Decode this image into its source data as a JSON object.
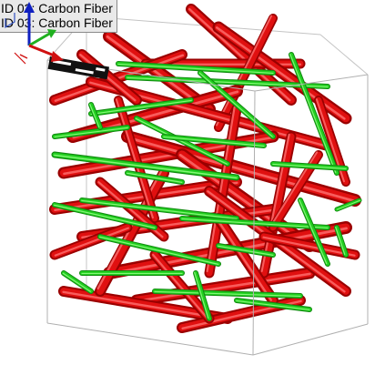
{
  "legend": {
    "items": [
      {
        "label": "ID 02: Carbon Fiber",
        "color": "#e01010"
      },
      {
        "label": "ID 03: Carbon Fiber",
        "color": "#22d020"
      }
    ]
  },
  "colors": {
    "fiber_red": "#e01010",
    "fiber_red_dark": "#a00000",
    "fiber_green": "#22d020",
    "fiber_green_dark": "#119010",
    "box_edge": "#b0b0b0",
    "background": "#ffffff"
  },
  "axis_triad": {
    "axes": [
      {
        "name": "x-axis",
        "color": "#d01010"
      },
      {
        "name": "y-axis",
        "color": "#20b020"
      },
      {
        "name": "z-axis",
        "color": "#1020c0"
      }
    ]
  },
  "scale_bar": {
    "icon": "scale-bar-icon"
  }
}
